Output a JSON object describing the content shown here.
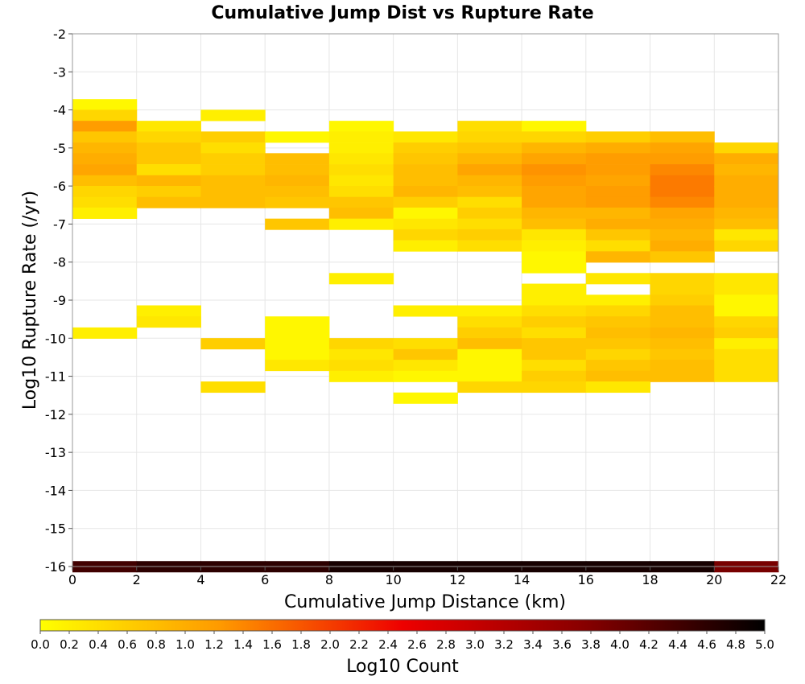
{
  "chart_data": {
    "type": "heatmap",
    "title": "Cumulative Jump Dist vs Rupture Rate",
    "xlabel": "Cumulative Jump Distance (km)",
    "ylabel": "Log10 Rupture Rate (/yr)",
    "xlim": [
      0,
      22
    ],
    "ylim": [
      -16,
      -2
    ],
    "x_ticks": [
      "0",
      "2",
      "4",
      "6",
      "8",
      "10",
      "12",
      "14",
      "16",
      "18",
      "20",
      "22"
    ],
    "y_ticks": [
      "-2",
      "-3",
      "-4",
      "-5",
      "-6",
      "-7",
      "-8",
      "-9",
      "-10",
      "-11",
      "-12",
      "-13",
      "-14",
      "-15",
      "-16"
    ],
    "x_bin_width": 2,
    "y_bin_height": 0.286,
    "grid": true,
    "colorbar": {
      "label": "Log10 Count",
      "range": [
        0,
        5
      ],
      "ticks": [
        "0.0",
        "0.2",
        "0.4",
        "0.6",
        "0.8",
        "1.0",
        "1.2",
        "1.4",
        "1.6",
        "1.8",
        "2.0",
        "2.2",
        "2.4",
        "2.6",
        "2.8",
        "3.0",
        "3.2",
        "3.4",
        "3.6",
        "3.8",
        "4.0",
        "4.2",
        "4.4",
        "4.6",
        "4.8",
        "5.0"
      ],
      "colors": [
        "#ffff00",
        "#ff9900",
        "#ee0000",
        "#880000",
        "#000000"
      ]
    },
    "columns": [
      {
        "x_start": 0,
        "cells": [
          [
            -3.86,
            0.1
          ],
          [
            -4.14,
            0.5
          ],
          [
            -4.43,
            1.2
          ],
          [
            -4.71,
            0.7
          ],
          [
            -5.0,
            0.9
          ],
          [
            -5.28,
            1.0
          ],
          [
            -5.57,
            1.1
          ],
          [
            -5.86,
            0.8
          ],
          [
            -6.14,
            0.5
          ],
          [
            -6.43,
            0.4
          ],
          [
            -6.71,
            0.2
          ],
          [
            -9.86,
            0.2
          ],
          [
            -16.0,
            4.4
          ]
        ]
      },
      {
        "x_start": 2,
        "cells": [
          [
            -4.43,
            0.3
          ],
          [
            -4.71,
            0.5
          ],
          [
            -5.0,
            0.7
          ],
          [
            -5.28,
            0.7
          ],
          [
            -5.57,
            0.4
          ],
          [
            -5.86,
            0.9
          ],
          [
            -6.14,
            0.6
          ],
          [
            -6.43,
            0.8
          ],
          [
            -9.28,
            0.2
          ],
          [
            -9.57,
            0.3
          ],
          [
            -16.0,
            4.6
          ]
        ]
      },
      {
        "x_start": 4,
        "cells": [
          [
            -4.14,
            0.2
          ],
          [
            -4.71,
            0.6
          ],
          [
            -5.0,
            0.4
          ],
          [
            -5.28,
            0.6
          ],
          [
            -5.57,
            0.6
          ],
          [
            -5.86,
            0.8
          ],
          [
            -6.14,
            0.8
          ],
          [
            -6.43,
            0.8
          ],
          [
            -10.14,
            0.6
          ],
          [
            -11.28,
            0.4
          ],
          [
            -16.0,
            4.6
          ]
        ]
      },
      {
        "x_start": 6,
        "cells": [
          [
            -4.71,
            0.1
          ],
          [
            -5.28,
            0.8
          ],
          [
            -5.57,
            0.8
          ],
          [
            -5.86,
            0.9
          ],
          [
            -6.14,
            0.8
          ],
          [
            -6.43,
            0.7
          ],
          [
            -7.0,
            0.7
          ],
          [
            -9.57,
            0.1
          ],
          [
            -9.86,
            0.1
          ],
          [
            -10.14,
            0.1
          ],
          [
            -10.43,
            0.1
          ],
          [
            -10.71,
            0.3
          ],
          [
            -16.0,
            4.6
          ]
        ]
      },
      {
        "x_start": 8,
        "cells": [
          [
            -4.43,
            0.1
          ],
          [
            -4.71,
            0.2
          ],
          [
            -5.0,
            0.2
          ],
          [
            -5.28,
            0.3
          ],
          [
            -5.57,
            0.4
          ],
          [
            -5.86,
            0.3
          ],
          [
            -6.14,
            0.4
          ],
          [
            -6.43,
            0.7
          ],
          [
            -6.71,
            0.8
          ],
          [
            -7.0,
            0.2
          ],
          [
            -8.43,
            0.2
          ],
          [
            -10.14,
            0.5
          ],
          [
            -10.43,
            0.3
          ],
          [
            -10.71,
            0.4
          ],
          [
            -11.0,
            0.2
          ],
          [
            -16.0,
            4.8
          ]
        ]
      },
      {
        "x_start": 10,
        "cells": [
          [
            -4.71,
            0.3
          ],
          [
            -5.0,
            0.6
          ],
          [
            -5.28,
            0.7
          ],
          [
            -5.57,
            0.8
          ],
          [
            -5.86,
            0.8
          ],
          [
            -6.14,
            0.9
          ],
          [
            -6.43,
            0.6
          ],
          [
            -6.71,
            0.1
          ],
          [
            -7.0,
            0.3
          ],
          [
            -7.28,
            0.5
          ],
          [
            -7.57,
            0.2
          ],
          [
            -9.28,
            0.2
          ],
          [
            -10.14,
            0.4
          ],
          [
            -10.43,
            0.7
          ],
          [
            -10.71,
            0.3
          ],
          [
            -11.0,
            0.1
          ],
          [
            -11.57,
            0.1
          ],
          [
            -16.0,
            4.8
          ]
        ]
      },
      {
        "x_start": 12,
        "cells": [
          [
            -4.43,
            0.4
          ],
          [
            -4.71,
            0.5
          ],
          [
            -5.0,
            0.7
          ],
          [
            -5.28,
            0.9
          ],
          [
            -5.57,
            1.1
          ],
          [
            -5.86,
            0.9
          ],
          [
            -6.14,
            0.8
          ],
          [
            -6.43,
            0.4
          ],
          [
            -6.71,
            0.6
          ],
          [
            -7.0,
            0.4
          ],
          [
            -7.28,
            0.6
          ],
          [
            -7.57,
            0.4
          ],
          [
            -9.28,
            0.2
          ],
          [
            -9.57,
            0.4
          ],
          [
            -9.86,
            0.6
          ],
          [
            -10.14,
            0.8
          ],
          [
            -10.43,
            0.1
          ],
          [
            -10.71,
            0.1
          ],
          [
            -11.0,
            0.1
          ],
          [
            -11.28,
            0.5
          ],
          [
            -16.0,
            4.8
          ]
        ]
      },
      {
        "x_start": 14,
        "cells": [
          [
            -4.43,
            0.1
          ],
          [
            -4.71,
            0.5
          ],
          [
            -5.0,
            0.9
          ],
          [
            -5.28,
            1.1
          ],
          [
            -5.57,
            1.3
          ],
          [
            -5.86,
            1.2
          ],
          [
            -6.14,
            1.1
          ],
          [
            -6.43,
            1.1
          ],
          [
            -6.71,
            0.9
          ],
          [
            -7.0,
            0.8
          ],
          [
            -7.28,
            0.3
          ],
          [
            -7.57,
            0.2
          ],
          [
            -7.86,
            0.1
          ],
          [
            -8.14,
            0.1
          ],
          [
            -8.71,
            0.2
          ],
          [
            -9.0,
            0.2
          ],
          [
            -9.28,
            0.4
          ],
          [
            -9.57,
            0.6
          ],
          [
            -9.86,
            0.4
          ],
          [
            -10.14,
            0.7
          ],
          [
            -10.43,
            0.7
          ],
          [
            -10.71,
            0.4
          ],
          [
            -11.0,
            0.6
          ],
          [
            -11.28,
            0.5
          ],
          [
            -16.0,
            4.8
          ]
        ]
      },
      {
        "x_start": 16,
        "cells": [
          [
            -4.71,
            0.6
          ],
          [
            -5.0,
            1.0
          ],
          [
            -5.28,
            1.2
          ],
          [
            -5.57,
            1.2
          ],
          [
            -5.86,
            1.1
          ],
          [
            -6.14,
            1.2
          ],
          [
            -6.43,
            1.2
          ],
          [
            -6.71,
            0.9
          ],
          [
            -7.0,
            1.0
          ],
          [
            -7.28,
            0.7
          ],
          [
            -7.57,
            0.4
          ],
          [
            -7.86,
            0.9
          ],
          [
            -8.43,
            0.3
          ],
          [
            -9.0,
            0.2
          ],
          [
            -9.28,
            0.5
          ],
          [
            -9.57,
            0.7
          ],
          [
            -9.86,
            0.8
          ],
          [
            -10.14,
            0.7
          ],
          [
            -10.43,
            0.5
          ],
          [
            -10.71,
            0.7
          ],
          [
            -11.0,
            0.8
          ],
          [
            -11.28,
            0.3
          ],
          [
            -16.0,
            4.8
          ]
        ]
      },
      {
        "x_start": 18,
        "cells": [
          [
            -4.71,
            0.8
          ],
          [
            -5.0,
            1.1
          ],
          [
            -5.28,
            1.2
          ],
          [
            -5.57,
            1.4
          ],
          [
            -5.86,
            1.5
          ],
          [
            -6.14,
            1.5
          ],
          [
            -6.43,
            1.4
          ],
          [
            -6.71,
            1.1
          ],
          [
            -7.0,
            1.0
          ],
          [
            -7.28,
            0.9
          ],
          [
            -7.57,
            1.0
          ],
          [
            -7.86,
            0.7
          ],
          [
            -8.43,
            0.5
          ],
          [
            -8.71,
            0.5
          ],
          [
            -9.0,
            0.6
          ],
          [
            -9.28,
            0.8
          ],
          [
            -9.57,
            0.8
          ],
          [
            -9.86,
            0.9
          ],
          [
            -10.14,
            0.8
          ],
          [
            -10.43,
            0.7
          ],
          [
            -10.71,
            0.8
          ],
          [
            -11.0,
            0.8
          ],
          [
            -16.0,
            4.8
          ]
        ]
      },
      {
        "x_start": 20,
        "cells": [
          [
            -5.0,
            0.5
          ],
          [
            -5.28,
            1.0
          ],
          [
            -5.57,
            0.9
          ],
          [
            -5.86,
            1.0
          ],
          [
            -6.14,
            1.0
          ],
          [
            -6.43,
            1.0
          ],
          [
            -6.71,
            0.9
          ],
          [
            -7.0,
            0.8
          ],
          [
            -7.28,
            0.3
          ],
          [
            -7.57,
            0.5
          ],
          [
            -8.43,
            0.3
          ],
          [
            -8.71,
            0.3
          ],
          [
            -9.0,
            0.1
          ],
          [
            -9.28,
            0.1
          ],
          [
            -9.57,
            0.5
          ],
          [
            -9.86,
            0.6
          ],
          [
            -10.14,
            0.2
          ],
          [
            -10.43,
            0.4
          ],
          [
            -10.71,
            0.4
          ],
          [
            -11.0,
            0.4
          ],
          [
            -16.0,
            3.9
          ]
        ]
      }
    ]
  }
}
